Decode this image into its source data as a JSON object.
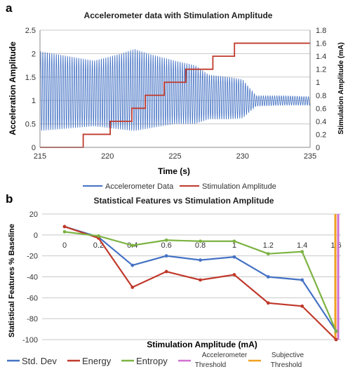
{
  "panel_a_letter": "a",
  "panel_b_letter": "b",
  "chart_data": [
    {
      "type": "line",
      "title": "Accelerometer data with Stimulation Amplitude",
      "xlabel": "Time (s)",
      "ylabel": "Acceleration Amplitude",
      "y2label": "Stimulation Amplitude (mA)",
      "xlim": [
        215,
        235
      ],
      "ylim": [
        0,
        2.5
      ],
      "y2lim": [
        0,
        1.8
      ],
      "x_ticks": [
        "215",
        "220",
        "225",
        "230",
        "235"
      ],
      "y_ticks": [
        "0",
        "0.5",
        "1",
        "1.5",
        "2",
        "2.5"
      ],
      "y2_ticks": [
        "0",
        "0.2",
        "0.4",
        "0.6",
        "0.8",
        "1",
        "1.2",
        "1.4",
        "1.6",
        "1.8"
      ],
      "grid": true,
      "legend_position": "bottom",
      "series": [
        {
          "name": "Accelerometer Data",
          "color": "#4472c4",
          "axis": "left",
          "oscillation_hz": 6,
          "center": 1.0,
          "envelope": {
            "t": [
              215,
              217,
              219,
              221,
              222,
              223,
              225,
              226.5,
              227.5,
              229,
              230,
              231,
              233,
              235
            ],
            "upper": [
              2.05,
              1.95,
              1.85,
              2.0,
              2.1,
              2.0,
              1.85,
              1.75,
              1.55,
              1.5,
              1.45,
              1.1,
              1.1,
              1.08
            ],
            "lower": [
              0.35,
              0.4,
              0.45,
              0.38,
              0.35,
              0.4,
              0.5,
              0.5,
              0.6,
              0.6,
              0.62,
              0.88,
              0.9,
              0.9
            ]
          }
        },
        {
          "name": "Stimulation Amplitude",
          "color": "#c0392b",
          "axis": "right",
          "step": true,
          "x": [
            215,
            218.2,
            218.2,
            220.2,
            220.2,
            221.8,
            221.8,
            222.8,
            222.8,
            224.2,
            224.2,
            225.8,
            225.8,
            227.8,
            227.8,
            229.4,
            229.4,
            230.5,
            230.5,
            235
          ],
          "y": [
            0,
            0,
            0.2,
            0.2,
            0.4,
            0.4,
            0.6,
            0.6,
            0.8,
            0.8,
            1.0,
            1.0,
            1.2,
            1.2,
            1.4,
            1.4,
            1.6,
            1.6,
            1.6,
            1.6
          ]
        }
      ]
    },
    {
      "type": "line",
      "title": "Statistical Features vs Stimulation Amplitude",
      "xlabel": "Stimulation Amplitude (mA)",
      "ylabel": "Statistical Features % Baseline",
      "ylim": [
        -100,
        20
      ],
      "x_ticks": [
        "0",
        "0.2",
        "0.4",
        "0.6",
        "0.8",
        "1",
        "1.2",
        "1.4",
        "1.6"
      ],
      "y_ticks": [
        "20",
        "0",
        "-20",
        "-40",
        "-60",
        "-80",
        "-100"
      ],
      "grid": true,
      "legend_position": "bottom",
      "x": [
        0,
        0.2,
        0.4,
        0.6,
        0.8,
        1.0,
        1.2,
        1.4,
        1.6
      ],
      "series": [
        {
          "name": "Std. Dev",
          "color": "#4472c4",
          "values": [
            8,
            -2,
            -29,
            -20,
            -24,
            -21,
            -40,
            -43,
            -92
          ]
        },
        {
          "name": "Energy",
          "color": "#c0392b",
          "values": [
            8,
            -3,
            -50,
            -35,
            -43,
            -38,
            -65,
            -68,
            -100
          ]
        },
        {
          "name": "Entropy",
          "color": "#7cb342",
          "values": [
            3,
            -1,
            -10,
            -5,
            -6,
            -6,
            -18,
            -16,
            -92
          ]
        }
      ],
      "thresholds": [
        {
          "name": "Accelerometer Threshold",
          "color": "#d070d0",
          "x": 1.6
        },
        {
          "name": "Subjective Threshold",
          "color": "#f0a020",
          "x": 1.6
        }
      ]
    }
  ],
  "legend_a": {
    "accel": "Accelerometer Data",
    "stim": "Stimulation Amplitude"
  },
  "legend_b": {
    "std": "Std. Dev",
    "energy": "Energy",
    "entropy": "Entropy",
    "accel_thr_1": "Accelerometer",
    "accel_thr_2": "Threshold",
    "subj_thr_1": "Subjective",
    "subj_thr_2": "Threshold"
  }
}
